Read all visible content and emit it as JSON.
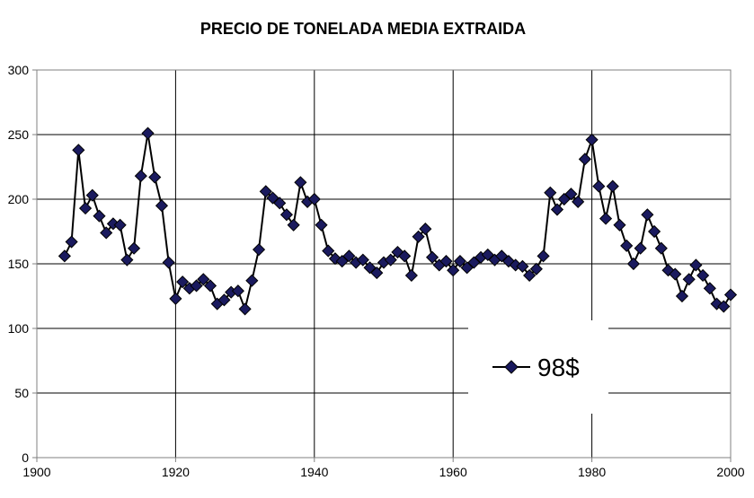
{
  "chart_data": {
    "type": "line",
    "title": "PRECIO DE TONELADA MEDIA EXTRAIDA",
    "xlabel": "",
    "ylabel": "",
    "xlim": [
      1900,
      2000
    ],
    "ylim": [
      0,
      300
    ],
    "x_ticks": [
      "1900",
      "1920",
      "1940",
      "1960",
      "1980",
      "2000"
    ],
    "y_ticks": [
      "0",
      "50",
      "100",
      "150",
      "200",
      "250",
      "300"
    ],
    "grid": true,
    "legend_position": "bottom-right",
    "series": [
      {
        "name": "98$",
        "color": "#000000",
        "marker_color": "#1a1a5e",
        "x": [
          1904,
          1905,
          1906,
          1907,
          1908,
          1909,
          1910,
          1911,
          1912,
          1913,
          1914,
          1915,
          1916,
          1917,
          1918,
          1919,
          1920,
          1921,
          1922,
          1923,
          1924,
          1925,
          1926,
          1927,
          1928,
          1929,
          1930,
          1931,
          1932,
          1933,
          1934,
          1935,
          1936,
          1937,
          1938,
          1939,
          1940,
          1941,
          1942,
          1943,
          1944,
          1945,
          1946,
          1947,
          1948,
          1949,
          1950,
          1951,
          1952,
          1953,
          1954,
          1955,
          1956,
          1957,
          1958,
          1959,
          1960,
          1961,
          1962,
          1963,
          1964,
          1965,
          1966,
          1967,
          1968,
          1969,
          1970,
          1971,
          1972,
          1973,
          1974,
          1975,
          1976,
          1977,
          1978,
          1979,
          1980,
          1981,
          1982,
          1983,
          1984,
          1985,
          1986,
          1987,
          1988,
          1989,
          1990,
          1991,
          1992,
          1993,
          1994,
          1995,
          1996,
          1997,
          1998,
          1999,
          2000
        ],
        "y": [
          156,
          167,
          238,
          193,
          203,
          187,
          174,
          181,
          180,
          153,
          162,
          218,
          251,
          217,
          195,
          151,
          123,
          136,
          131,
          133,
          138,
          133,
          119,
          122,
          128,
          129,
          115,
          137,
          161,
          206,
          201,
          197,
          188,
          180,
          213,
          198,
          200,
          180,
          160,
          154,
          152,
          156,
          151,
          153,
          147,
          143,
          151,
          153,
          159,
          156,
          141,
          171,
          177,
          155,
          149,
          152,
          145,
          152,
          147,
          151,
          155,
          157,
          153,
          156,
          152,
          149,
          148,
          141,
          146,
          156,
          205,
          192,
          200,
          204,
          198,
          231,
          246,
          210,
          185,
          210,
          180,
          164,
          150,
          162,
          188,
          175,
          162,
          145,
          142,
          125,
          138,
          149,
          141,
          131,
          119,
          117,
          126
        ]
      }
    ]
  }
}
